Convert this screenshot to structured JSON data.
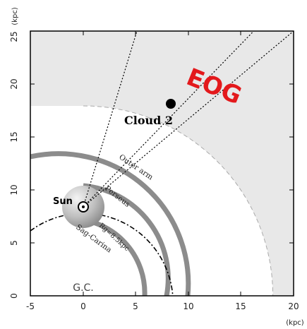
{
  "figure": {
    "y_unit": "(kpc)",
    "x_unit": "(kpc)",
    "x_ticks": [
      "-5",
      "0",
      "5",
      "10",
      "15",
      "20"
    ],
    "y_ticks": [
      "0",
      "5",
      "10",
      "15",
      "20",
      "25"
    ],
    "xlim": [
      -5,
      20
    ],
    "ylim": [
      0,
      25
    ]
  },
  "regions": {
    "eog_label": "EOG",
    "eog_color": "#e3191c",
    "eog_fill": "#e8e8e8",
    "eog_inner_radius_kpc": 18
  },
  "objects": {
    "sun_label": "Sun",
    "sun_position_kpc": [
      0,
      8.5
    ],
    "cloud_label": "Cloud 2",
    "cloud_position_kpc": [
      8.3,
      18.3
    ],
    "gc_label": "G.C."
  },
  "arms": {
    "outer": "Outer arm",
    "perseus": "Perseus",
    "rg": "Rg=8.5kpc",
    "sag_carina": "Sag-Carina"
  }
}
